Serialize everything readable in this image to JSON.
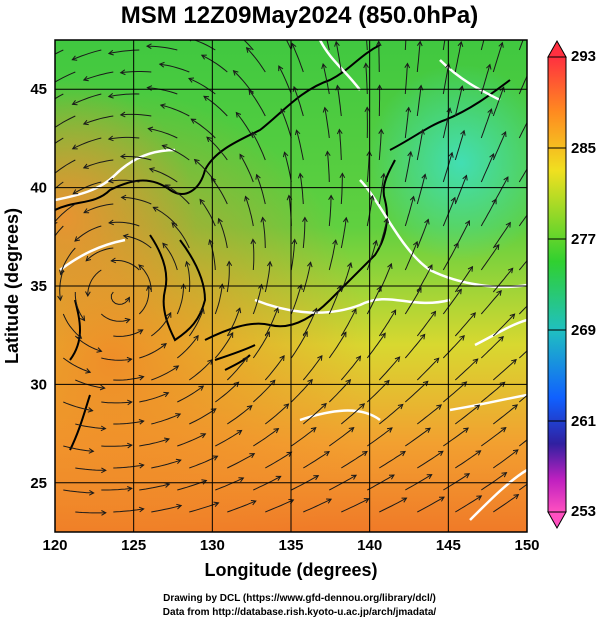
{
  "title": "MSM 12Z09May2024 (850.0hPa)",
  "axes": {
    "xlabel": "Longitude (degrees)",
    "ylabel": "Latitude  (degrees)",
    "xlim": [
      120,
      150
    ],
    "ylim": [
      22.5,
      47.5
    ],
    "xticks": [
      "120",
      "125",
      "130",
      "135",
      "140",
      "145",
      "150"
    ],
    "yticks": [
      "25",
      "30",
      "35",
      "40",
      "45"
    ]
  },
  "colorbar": {
    "min": 253,
    "max": 293,
    "labels": [
      "293",
      "285",
      "277",
      "269",
      "261",
      "253"
    ],
    "colors": [
      "#ff3040",
      "#ff8a20",
      "#f0e020",
      "#30d030",
      "#20c0c0",
      "#1060ff",
      "#3020a0",
      "#c020c0",
      "#ff50c0"
    ]
  },
  "credits": {
    "line1": "Drawing by DCL (https://www.gfd-dennou.org/library/dcl/)",
    "line2": "Data from http://database.rish.kyoto-u.ac.jp/arch/jmadata/"
  },
  "chart_data": {
    "type": "heatmap",
    "title": "MSM 12Z09May2024 (850.0hPa)",
    "xlabel": "Longitude (degrees)",
    "ylabel": "Latitude  (degrees)",
    "xlim": [
      120,
      150
    ],
    "ylim": [
      22.5,
      47.5
    ],
    "grid": true,
    "colorbar_range": [
      253,
      293
    ],
    "colorbar_labels": [
      293,
      285,
      277,
      269,
      261,
      253
    ],
    "overlay": "streamlines"
  }
}
